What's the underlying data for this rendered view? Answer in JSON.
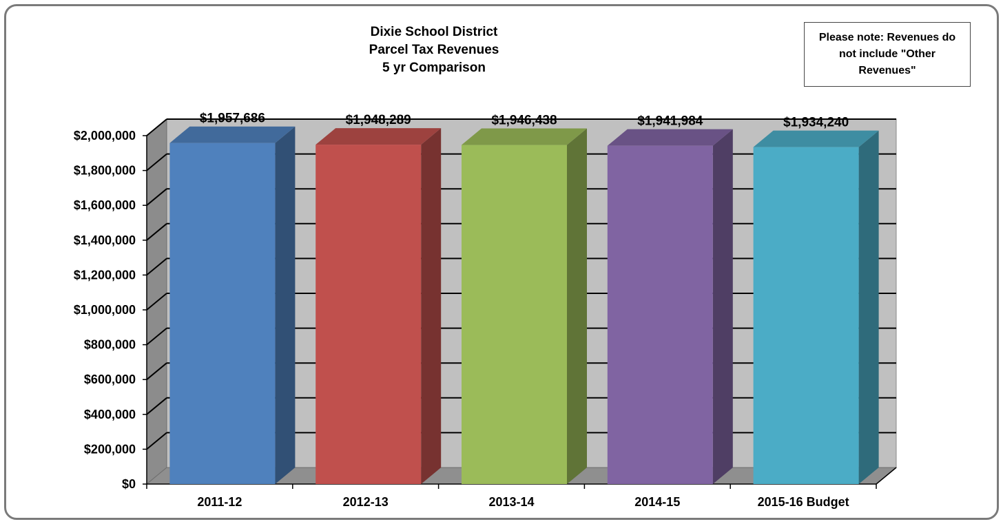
{
  "chart_data": {
    "type": "bar",
    "title_lines": [
      "Dixie School District",
      "Parcel Tax Revenues",
      "5 yr Comparison"
    ],
    "xlabel": "",
    "ylabel": "",
    "categories": [
      "2011-12",
      "2012-13",
      "2013-14",
      "2014-15",
      "2015-16 Budget"
    ],
    "values": [
      1957686,
      1948289,
      1946438,
      1941984,
      1934240
    ],
    "data_labels": [
      "$1,957,686",
      "$1,948,289",
      "$1,946,438",
      "$1,941,984",
      "$1,934,240"
    ],
    "ylim": [
      0,
      2000000
    ],
    "y_ticks": [
      0,
      200000,
      400000,
      600000,
      800000,
      1000000,
      1200000,
      1400000,
      1600000,
      1800000,
      2000000
    ],
    "y_tick_labels": [
      "$0",
      "$200,000",
      "$400,000",
      "$600,000",
      "$800,000",
      "$1,000,000",
      "$1,200,000",
      "$1,400,000",
      "$1,600,000",
      "$1,800,000",
      "$2,000,000"
    ],
    "grid": true,
    "style": "3d",
    "colors": [
      "#4f81bd",
      "#c0504d",
      "#9bbb59",
      "#8064a2",
      "#4bacc6"
    ],
    "wall_color": "#c0c0c0",
    "legend": "none"
  },
  "note": {
    "text": "Please note: Revenues do not include \"Other Revenues\""
  }
}
